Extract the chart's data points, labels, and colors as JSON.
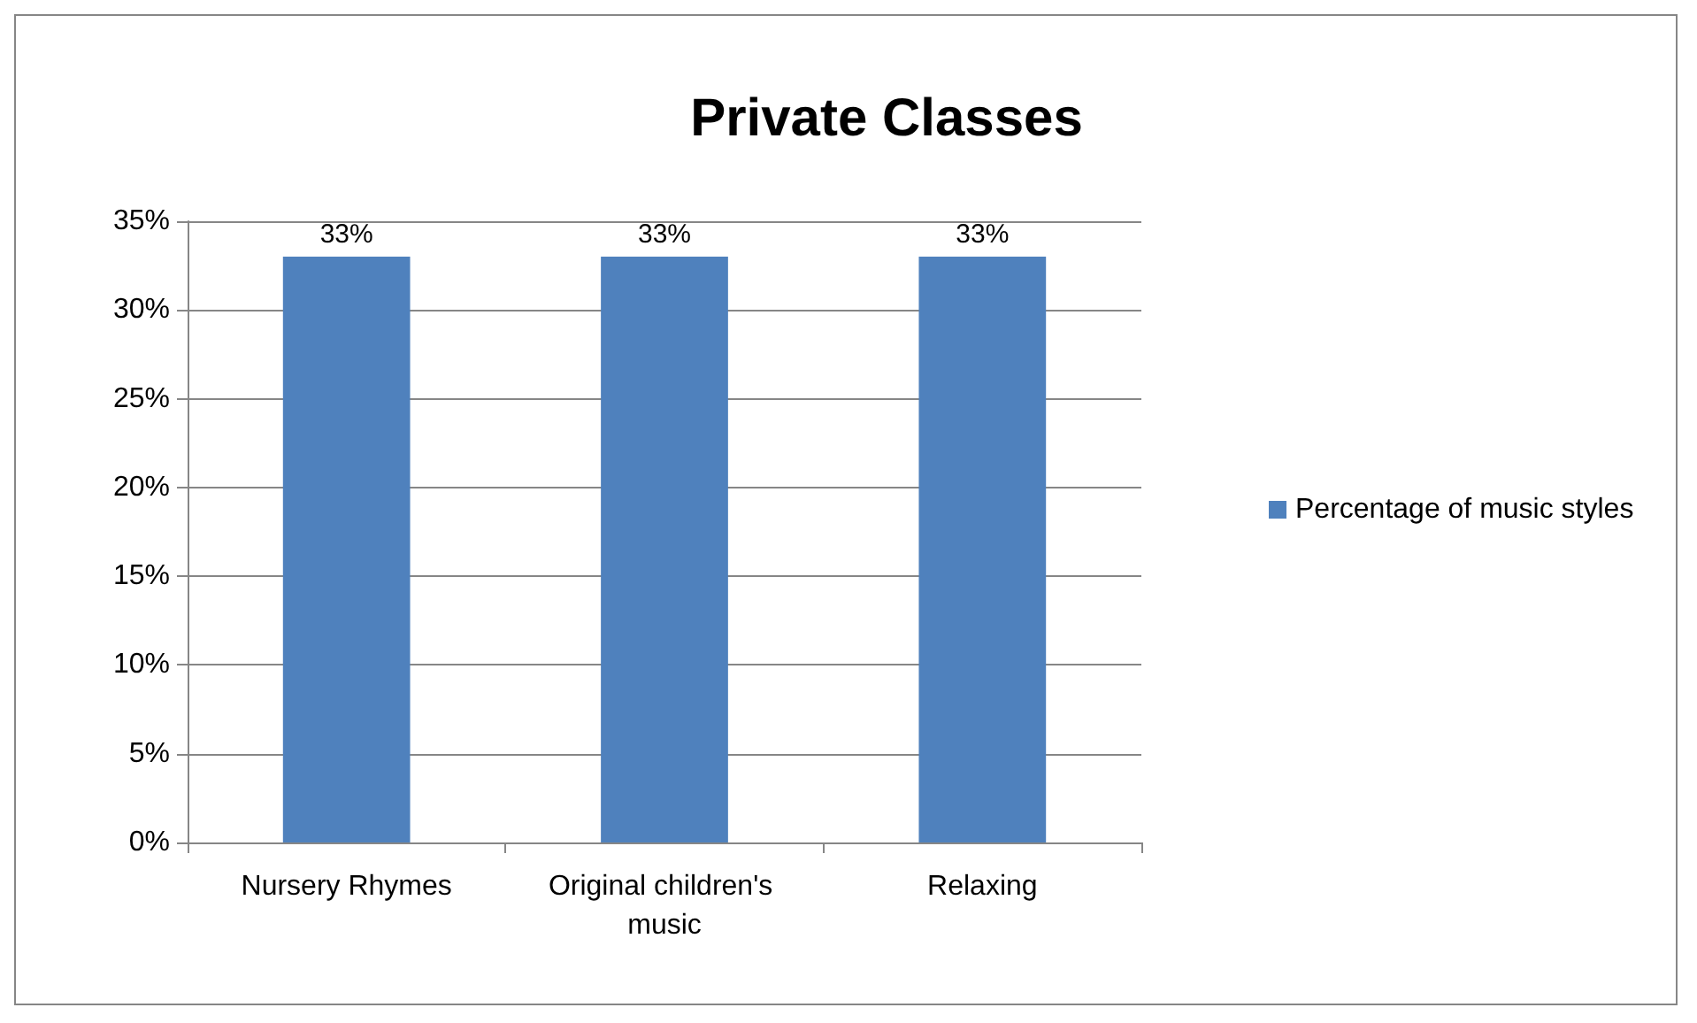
{
  "chart_data": {
    "type": "bar",
    "title": "Private Classes",
    "categories": [
      "Nursery Rhymes",
      "Original children's music",
      "Relaxing"
    ],
    "series": [
      {
        "name": "Percentage of music styles",
        "color": "#4f81bd",
        "values": [
          33,
          33,
          33
        ],
        "value_labels": [
          "33%",
          "33%",
          "33%"
        ]
      }
    ],
    "ylim": [
      0,
      35
    ],
    "yticks": [
      {
        "value": 0,
        "label": "0%"
      },
      {
        "value": 5,
        "label": "5%"
      },
      {
        "value": 10,
        "label": "10%"
      },
      {
        "value": 15,
        "label": "15%"
      },
      {
        "value": 20,
        "label": "20%"
      },
      {
        "value": 25,
        "label": "25%"
      },
      {
        "value": 30,
        "label": "30%"
      },
      {
        "value": 35,
        "label": "35%"
      }
    ],
    "grid": "y",
    "legend": "right"
  }
}
